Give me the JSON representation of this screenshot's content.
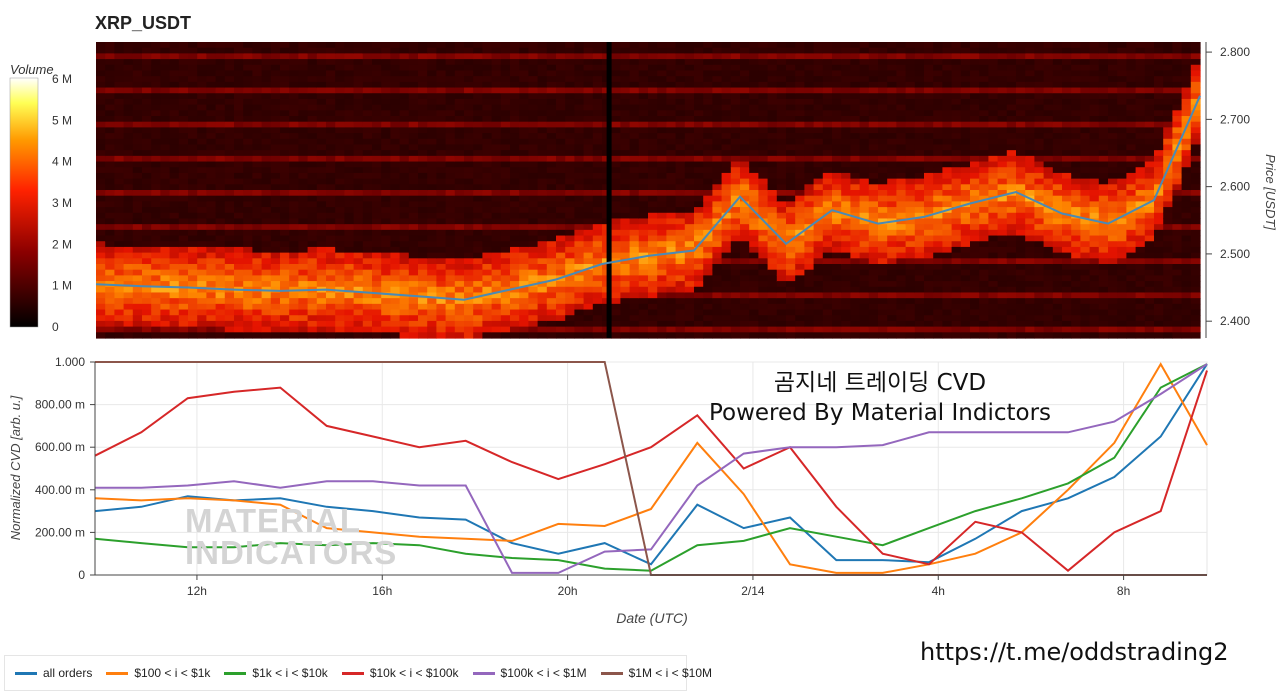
{
  "title": "XRP_USDT",
  "watermark": {
    "line1": "곰지네 트레이딩 CVD",
    "line2": "Powered By Material Indictors",
    "logo_line1": "MATERIAL",
    "logo_line2": "INDICATORS"
  },
  "url": "https://t.me/oddstrading2",
  "colors": {
    "all_orders": "#1f77b4",
    "r100_1k": "#ff7f0e",
    "r1k_10k": "#2ca02c",
    "r10k_100k": "#d62728",
    "r100k_1M": "#9467bd",
    "r1M_10M": "#8c564b",
    "price_line": "#4a8ab5"
  },
  "chart_data": [
    {
      "type": "heatmap",
      "title": "XRP_USDT",
      "ylabel": "Price [USDT]",
      "ylim": [
        2.375,
        2.815
      ],
      "y_ticks": [
        "2.400",
        "2.500",
        "2.600",
        "2.700",
        "2.800"
      ],
      "colorbar": {
        "label": "Volume",
        "ticks": [
          "0",
          "1 M",
          "2 M",
          "3 M",
          "4 M",
          "5 M",
          "6 M"
        ],
        "range": [
          0,
          6
        ]
      },
      "price_series": {
        "name": "price",
        "x": [
          0,
          1,
          2,
          3,
          4,
          5,
          6,
          7,
          8,
          9,
          10,
          11,
          12,
          13,
          14,
          15,
          16,
          17,
          18,
          19,
          20,
          21,
          22,
          23,
          24
        ],
        "y": [
          2.455,
          2.452,
          2.45,
          2.447,
          2.445,
          2.447,
          2.442,
          2.437,
          2.432,
          2.447,
          2.462,
          2.485,
          2.497,
          2.505,
          2.585,
          2.515,
          2.565,
          2.545,
          2.555,
          2.575,
          2.592,
          2.56,
          2.545,
          2.58,
          2.735
        ]
      }
    },
    {
      "type": "line",
      "xlabel": "Date (UTC)",
      "ylabel": "Normalized CVD [arb. u.]",
      "ylim": [
        0,
        1
      ],
      "y_ticks": [
        "0",
        "200.00 m",
        "400.00 m",
        "600.00 m",
        "800.00 m",
        "1.000"
      ],
      "x_ticks": [
        "12h",
        "16h",
        "20h",
        "2/14",
        "4h",
        "8h"
      ],
      "x": [
        0,
        1,
        2,
        3,
        4,
        5,
        6,
        7,
        8,
        9,
        10,
        11,
        12,
        13,
        14,
        15,
        16,
        17,
        18,
        19,
        20,
        21,
        22,
        23,
        24
      ],
      "series": [
        {
          "name": "all orders",
          "values": [
            0.3,
            0.32,
            0.37,
            0.35,
            0.36,
            0.32,
            0.3,
            0.27,
            0.26,
            0.15,
            0.1,
            0.15,
            0.05,
            0.33,
            0.22,
            0.27,
            0.07,
            0.07,
            0.06,
            0.17,
            0.3,
            0.36,
            0.46,
            0.65,
            0.99
          ]
        },
        {
          "name": "$100 < i < $1k",
          "values": [
            0.36,
            0.35,
            0.36,
            0.35,
            0.33,
            0.22,
            0.2,
            0.18,
            0.17,
            0.16,
            0.24,
            0.23,
            0.31,
            0.62,
            0.38,
            0.05,
            0.01,
            0.01,
            0.05,
            0.1,
            0.2,
            0.4,
            0.62,
            0.99,
            0.61
          ]
        },
        {
          "name": "$1k < i < $10k",
          "values": [
            0.17,
            0.15,
            0.13,
            0.13,
            0.15,
            0.14,
            0.15,
            0.14,
            0.1,
            0.08,
            0.07,
            0.03,
            0.02,
            0.14,
            0.16,
            0.22,
            0.18,
            0.14,
            0.22,
            0.3,
            0.36,
            0.43,
            0.55,
            0.88,
            0.99
          ]
        },
        {
          "name": "$10k < i < $100k",
          "values": [
            0.56,
            0.67,
            0.83,
            0.86,
            0.88,
            0.7,
            0.65,
            0.6,
            0.63,
            0.53,
            0.45,
            0.52,
            0.6,
            0.75,
            0.5,
            0.6,
            0.32,
            0.1,
            0.05,
            0.25,
            0.2,
            0.02,
            0.2,
            0.3,
            0.96
          ]
        },
        {
          "name": "$100k < i < $1M",
          "values": [
            0.41,
            0.41,
            0.42,
            0.44,
            0.41,
            0.44,
            0.44,
            0.42,
            0.42,
            0.01,
            0.01,
            0.11,
            0.12,
            0.42,
            0.57,
            0.6,
            0.6,
            0.61,
            0.67,
            0.67,
            0.67,
            0.67,
            0.72,
            0.85,
            0.99
          ]
        },
        {
          "name": "$1M < i < $10M",
          "values": [
            1.0,
            1.0,
            1.0,
            1.0,
            1.0,
            1.0,
            1.0,
            1.0,
            1.0,
            1.0,
            1.0,
            1.0,
            0.0,
            0.0,
            0.0,
            0.0,
            0.0,
            0.0,
            0.0,
            0.0,
            0.0,
            0.0,
            0.0,
            0.0,
            0.0
          ]
        }
      ]
    }
  ]
}
